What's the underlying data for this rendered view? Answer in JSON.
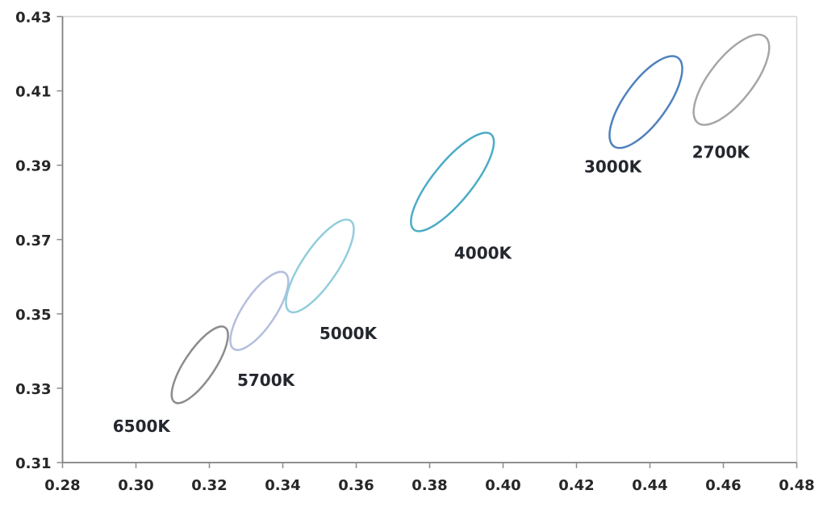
{
  "chart_data": {
    "type": "scatter",
    "title": "",
    "xlabel": "",
    "ylabel": "",
    "xlim": [
      0.28,
      0.48
    ],
    "ylim": [
      0.31,
      0.43
    ],
    "grid": false,
    "legend": "none",
    "x_axis": {
      "ticks": [
        0.28,
        0.3,
        0.32,
        0.34,
        0.36,
        0.38,
        0.4,
        0.42,
        0.44,
        0.46,
        0.48
      ],
      "tick_labels": [
        "0.28",
        "0.30",
        "0.32",
        "0.34",
        "0.36",
        "0.38",
        "0.40",
        "0.42",
        "0.44",
        "0.46",
        "0.48"
      ]
    },
    "y_axis": {
      "ticks": [
        0.31,
        0.33,
        0.35,
        0.37,
        0.39,
        0.41,
        0.43
      ],
      "tick_labels": [
        "0.31",
        "0.33",
        "0.35",
        "0.37",
        "0.39",
        "0.41",
        "0.43"
      ]
    },
    "series": [
      {
        "label": "6500K",
        "color": "#8c8c8c",
        "center": {
          "x": 0.3174,
          "y": 0.3363
        },
        "semi_major": 0.0122,
        "semi_minor": 0.0041,
        "tilt_deg": 56,
        "label_pos": {
          "x": 0.3015,
          "y": 0.3198
        }
      },
      {
        "label": "5700K",
        "color": "#b4bfde",
        "center": {
          "x": 0.3336,
          "y": 0.3508
        },
        "semi_major": 0.0124,
        "semi_minor": 0.0044,
        "tilt_deg": 56,
        "label_pos": {
          "x": 0.3354,
          "y": 0.3321
        }
      },
      {
        "label": "5000K",
        "color": "#92cddc",
        "center": {
          "x": 0.3501,
          "y": 0.3629
        },
        "semi_major": 0.0148,
        "semi_minor": 0.0048,
        "tilt_deg": 56,
        "label_pos": {
          "x": 0.3578,
          "y": 0.3447
        }
      },
      {
        "label": "4000K",
        "color": "#4bacc6",
        "center": {
          "x": 0.3862,
          "y": 0.3855
        },
        "semi_major": 0.0166,
        "semi_minor": 0.0053,
        "tilt_deg": 51,
        "label_pos": {
          "x": 0.3945,
          "y": 0.3664
        }
      },
      {
        "label": "3000K",
        "color": "#4f81bd",
        "center": {
          "x": 0.4389,
          "y": 0.407
        },
        "semi_major": 0.0148,
        "semi_minor": 0.0057,
        "tilt_deg": 54,
        "label_pos": {
          "x": 0.4299,
          "y": 0.3896
        }
      },
      {
        "label": "2700K",
        "color": "#a6a6a6",
        "center": {
          "x": 0.4622,
          "y": 0.413
        },
        "semi_major": 0.0148,
        "semi_minor": 0.0059,
        "tilt_deg": 52,
        "label_pos": {
          "x": 0.4593,
          "y": 0.3935
        }
      }
    ],
    "style": {
      "background_color": "#ffffff",
      "axis_line_color": "#7f7f7f",
      "plot_border_color": "#d6d6d6",
      "tick_mark_color": "#8c8c8c",
      "tick_text_color": "#262626",
      "series_label_color": "#24272e",
      "ellipse_stroke_width": 2.5
    }
  }
}
